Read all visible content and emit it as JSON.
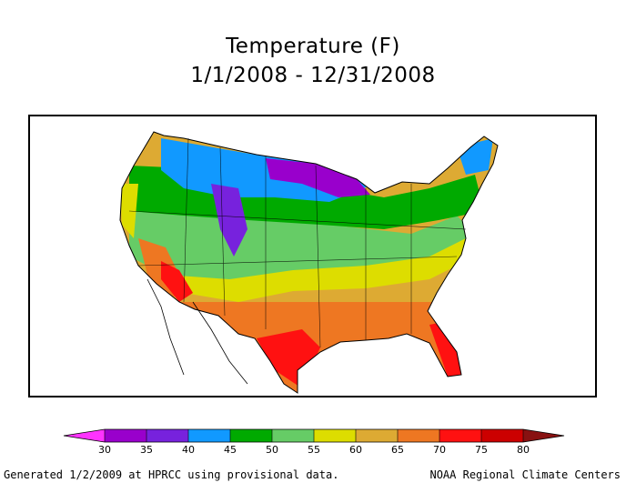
{
  "title": "Temperature (F)",
  "date_range": "1/1/2008 - 12/31/2008",
  "legend": {
    "unit": "F",
    "ticks": [
      "30",
      "35",
      "40",
      "45",
      "50",
      "55",
      "60",
      "65",
      "70",
      "75",
      "80"
    ],
    "bins": [
      {
        "range": "<30",
        "color": "#ff33ff"
      },
      {
        "range": "30-35",
        "color": "#9900cc"
      },
      {
        "range": "35-40",
        "color": "#7722dd"
      },
      {
        "range": "40-45",
        "color": "#1199ff"
      },
      {
        "range": "45-50",
        "color": "#00aa00"
      },
      {
        "range": "50-55",
        "color": "#66cc66"
      },
      {
        "range": "55-60",
        "color": "#dddd00"
      },
      {
        "range": "60-65",
        "color": "#ddaa33"
      },
      {
        "range": "65-70",
        "color": "#ee7722"
      },
      {
        "range": "70-75",
        "color": "#ff1111"
      },
      {
        "range": "75-80",
        "color": "#cc0000"
      },
      {
        "range": ">80",
        "color": "#881111"
      }
    ]
  },
  "footer_left": "Generated 1/2/2009 at HPRCC using provisional data.",
  "footer_right": "NOAA Regional Climate Centers"
}
